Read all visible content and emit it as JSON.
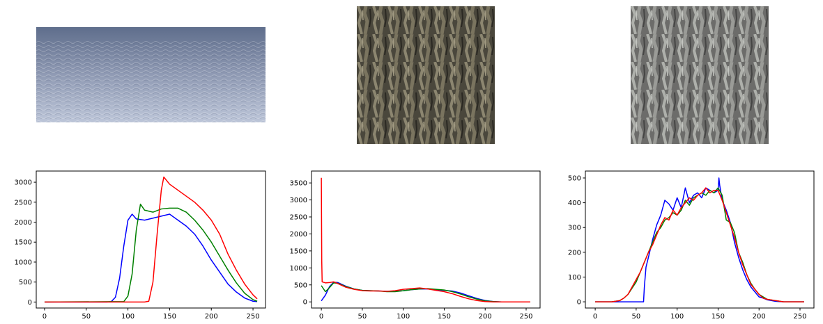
{
  "images": [
    {
      "name": "sky-gradient-texture-image",
      "colors": {
        "top": "#5f6e8c",
        "bottom": "#b8c2d6"
      }
    },
    {
      "name": "bark-texture-dark-image",
      "colors": {
        "base": "#4c4a40",
        "light": "#8c8670"
      }
    },
    {
      "name": "bark-texture-light-image",
      "colors": {
        "base": "#6e6e6e",
        "light": "#a9aaa6"
      }
    }
  ],
  "colors": {
    "blue": "#0000ff",
    "green": "#008000",
    "red": "#ff0000"
  },
  "chart_data": [
    {
      "type": "line",
      "xlim": [
        -10,
        265
      ],
      "ylim": [
        -150,
        3280
      ],
      "xticks": [
        0,
        50,
        100,
        150,
        200,
        250
      ],
      "yticks": [
        0,
        500,
        1000,
        1500,
        2000,
        2500,
        3000
      ],
      "xtick_labels": [
        "0",
        "50",
        "100",
        "150",
        "200",
        "250"
      ],
      "ytick_labels": [
        "0",
        "500",
        "1000",
        "1500",
        "2000",
        "2500",
        "3000"
      ],
      "series": [
        {
          "color": "blue",
          "x": [
            0,
            75,
            80,
            85,
            90,
            95,
            100,
            105,
            110,
            120,
            130,
            140,
            150,
            160,
            170,
            180,
            190,
            200,
            210,
            220,
            230,
            240,
            250,
            255
          ],
          "values": [
            0,
            0,
            10,
            120,
            600,
            1400,
            2050,
            2200,
            2080,
            2050,
            2100,
            2150,
            2200,
            2050,
            1900,
            1700,
            1400,
            1050,
            750,
            450,
            250,
            100,
            20,
            10
          ]
        },
        {
          "color": "green",
          "x": [
            0,
            95,
            100,
            105,
            110,
            115,
            120,
            130,
            140,
            150,
            160,
            170,
            180,
            190,
            200,
            210,
            220,
            230,
            240,
            250,
            255
          ],
          "values": [
            0,
            10,
            150,
            700,
            1800,
            2450,
            2300,
            2250,
            2330,
            2350,
            2350,
            2250,
            2050,
            1800,
            1500,
            1150,
            800,
            480,
            220,
            60,
            20
          ]
        },
        {
          "color": "red",
          "x": [
            0,
            120,
            125,
            130,
            135,
            140,
            143,
            150,
            160,
            170,
            180,
            190,
            200,
            210,
            220,
            230,
            240,
            250,
            255
          ],
          "values": [
            0,
            0,
            20,
            500,
            1700,
            2800,
            3130,
            2950,
            2800,
            2650,
            2500,
            2300,
            2050,
            1700,
            1200,
            800,
            450,
            180,
            80
          ]
        }
      ]
    },
    {
      "type": "line",
      "xlim": [
        -12,
        267
      ],
      "ylim": [
        -180,
        3850
      ],
      "xticks": [
        0,
        50,
        100,
        150,
        200,
        250
      ],
      "yticks": [
        0,
        500,
        1000,
        1500,
        2000,
        2500,
        3000,
        3500
      ],
      "xtick_labels": [
        "0",
        "50",
        "100",
        "150",
        "200",
        "250"
      ],
      "ytick_labels": [
        "0",
        "500",
        "1000",
        "1500",
        "2000",
        "2500",
        "3000",
        "3500"
      ],
      "series": [
        {
          "color": "blue",
          "x": [
            0,
            5,
            10,
            15,
            20,
            30,
            40,
            50,
            60,
            70,
            80,
            90,
            100,
            110,
            120,
            130,
            140,
            150,
            160,
            170,
            180,
            190,
            200,
            210,
            220,
            255
          ],
          "values": [
            30,
            200,
            450,
            580,
            570,
            460,
            380,
            340,
            330,
            320,
            310,
            310,
            330,
            360,
            380,
            380,
            360,
            340,
            320,
            260,
            180,
            100,
            40,
            10,
            0,
            0
          ]
        },
        {
          "color": "green",
          "x": [
            0,
            5,
            10,
            15,
            20,
            30,
            40,
            50,
            60,
            70,
            80,
            90,
            100,
            110,
            120,
            130,
            140,
            150,
            160,
            170,
            180,
            190,
            200,
            210,
            220,
            255
          ],
          "values": [
            480,
            300,
            420,
            560,
            550,
            450,
            380,
            340,
            330,
            320,
            300,
            300,
            330,
            360,
            380,
            390,
            370,
            350,
            300,
            230,
            150,
            80,
            30,
            10,
            0,
            0
          ]
        },
        {
          "color": "red",
          "x": [
            0,
            0.5,
            1,
            5,
            10,
            15,
            20,
            30,
            40,
            50,
            60,
            70,
            80,
            90,
            100,
            110,
            120,
            130,
            140,
            150,
            160,
            170,
            180,
            190,
            200,
            210,
            255
          ],
          "values": [
            3650,
            1200,
            590,
            560,
            570,
            590,
            540,
            430,
            370,
            330,
            320,
            320,
            310,
            330,
            370,
            390,
            410,
            380,
            340,
            300,
            240,
            160,
            90,
            40,
            10,
            0,
            0
          ]
        }
      ]
    },
    {
      "type": "line",
      "xlim": [
        -12,
        267
      ],
      "ylim": [
        -25,
        528
      ],
      "xticks": [
        0,
        50,
        100,
        150,
        200,
        250
      ],
      "yticks": [
        0,
        100,
        200,
        300,
        400,
        500
      ],
      "xtick_labels": [
        "0",
        "50",
        "100",
        "150",
        "200",
        "250"
      ],
      "ytick_labels": [
        "0",
        "100",
        "200",
        "300",
        "400",
        "500"
      ],
      "series": [
        {
          "color": "blue",
          "x": [
            0,
            59,
            60,
            62,
            65,
            70,
            75,
            80,
            85,
            90,
            95,
            100,
            105,
            110,
            115,
            120,
            125,
            130,
            135,
            140,
            145,
            150,
            151,
            152,
            155,
            160,
            165,
            170,
            175,
            180,
            185,
            190,
            195,
            200,
            205,
            210,
            215,
            220,
            230,
            240,
            255
          ],
          "values": [
            0,
            0,
            60,
            140,
            180,
            250,
            310,
            350,
            410,
            395,
            370,
            420,
            380,
            460,
            400,
            430,
            440,
            420,
            460,
            450,
            440,
            450,
            500,
            470,
            410,
            370,
            320,
            240,
            180,
            130,
            90,
            60,
            40,
            20,
            15,
            8,
            5,
            2,
            0,
            0,
            0
          ]
        },
        {
          "color": "green",
          "x": [
            0,
            20,
            30,
            35,
            40,
            45,
            50,
            55,
            60,
            65,
            70,
            75,
            80,
            85,
            90,
            95,
            100,
            105,
            110,
            115,
            120,
            125,
            130,
            135,
            140,
            145,
            150,
            155,
            160,
            165,
            170,
            175,
            180,
            185,
            190,
            195,
            200,
            205,
            210,
            220,
            230,
            255
          ],
          "values": [
            0,
            0,
            5,
            15,
            30,
            55,
            80,
            120,
            160,
            200,
            240,
            280,
            300,
            330,
            340,
            360,
            350,
            370,
            410,
            390,
            420,
            430,
            440,
            430,
            450,
            440,
            460,
            430,
            330,
            320,
            280,
            200,
            160,
            110,
            75,
            50,
            30,
            20,
            10,
            5,
            0,
            0
          ]
        },
        {
          "color": "red",
          "x": [
            0,
            20,
            30,
            35,
            40,
            45,
            50,
            55,
            60,
            65,
            70,
            75,
            80,
            85,
            90,
            95,
            100,
            105,
            110,
            115,
            120,
            125,
            130,
            135,
            140,
            145,
            150,
            155,
            160,
            165,
            170,
            175,
            180,
            185,
            190,
            195,
            200,
            205,
            210,
            220,
            230,
            255
          ],
          "values": [
            0,
            0,
            5,
            15,
            30,
            60,
            90,
            120,
            160,
            200,
            230,
            270,
            310,
            340,
            330,
            370,
            350,
            380,
            400,
            420,
            410,
            430,
            440,
            460,
            440,
            450,
            450,
            410,
            360,
            310,
            260,
            200,
            150,
            110,
            70,
            50,
            30,
            15,
            10,
            5,
            0,
            0
          ]
        }
      ]
    }
  ]
}
